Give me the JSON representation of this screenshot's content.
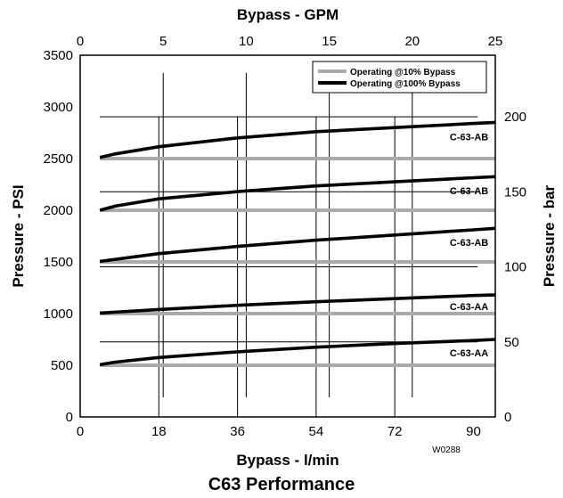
{
  "chart_data": {
    "type": "line",
    "title": "C63 Performance",
    "code": "W0288",
    "x_bottom": {
      "label": "Bypass - l/min",
      "range": [
        0,
        95
      ],
      "ticks": [
        0,
        18,
        36,
        54,
        72,
        90
      ]
    },
    "x_top": {
      "label": "Bypass - GPM",
      "range": [
        0,
        25
      ],
      "ticks": [
        0,
        5,
        10,
        15,
        20,
        25
      ]
    },
    "y_left": {
      "label": "Pressure - PSI",
      "range": [
        0,
        3500
      ],
      "ticks": [
        0,
        500,
        1000,
        1500,
        2000,
        2500,
        3000,
        3500
      ]
    },
    "y_right": {
      "label": "Pressure - bar",
      "range": [
        0,
        241
      ],
      "ticks": [
        0,
        50,
        100,
        150,
        200
      ]
    },
    "grid": "partial",
    "legend": {
      "placement": "top-right",
      "entries": [
        {
          "name": "Operating @10% Bypass",
          "color": "#aaaaaa"
        },
        {
          "name": "Operating @100% Bypass",
          "color": "#000000"
        }
      ]
    },
    "series": [
      {
        "name": "Operating @10% Bypass",
        "label": "C-63-AB",
        "x": [
          4.5,
          95
        ],
        "y": [
          2500,
          2500
        ]
      },
      {
        "name": "Operating @100% Bypass",
        "label": "C-63-AB",
        "x": [
          4.5,
          8,
          18,
          36,
          54,
          72,
          90,
          95
        ],
        "y": [
          2510,
          2545,
          2615,
          2700,
          2760,
          2800,
          2840,
          2850
        ]
      },
      {
        "name": "Operating @10% Bypass",
        "label": "C-63-AB",
        "x": [
          4.5,
          95
        ],
        "y": [
          2000,
          2000
        ]
      },
      {
        "name": "Operating @100% Bypass",
        "label": "C-63-AB",
        "x": [
          4.5,
          8,
          18,
          36,
          54,
          72,
          90,
          95
        ],
        "y": [
          2000,
          2040,
          2110,
          2180,
          2235,
          2275,
          2315,
          2325
        ]
      },
      {
        "name": "Operating @10% Bypass",
        "label": "C-63-AB",
        "x": [
          4.5,
          95
        ],
        "y": [
          1500,
          1500
        ]
      },
      {
        "name": "Operating @100% Bypass",
        "label": "C-63-AB",
        "x": [
          4.5,
          18,
          36,
          54,
          72,
          90,
          95
        ],
        "y": [
          1505,
          1580,
          1650,
          1710,
          1760,
          1810,
          1825
        ]
      },
      {
        "name": "Operating @10% Bypass",
        "label": "C-63-AA",
        "x": [
          4.5,
          95
        ],
        "y": [
          1000,
          1000
        ]
      },
      {
        "name": "Operating @100% Bypass",
        "label": "C-63-AA",
        "x": [
          4.5,
          18,
          36,
          54,
          72,
          90,
          95
        ],
        "y": [
          1005,
          1040,
          1080,
          1115,
          1145,
          1175,
          1180
        ]
      },
      {
        "name": "Operating @10% Bypass",
        "label": "C-63-AA",
        "x": [
          4.5,
          95
        ],
        "y": [
          500,
          500
        ]
      },
      {
        "name": "Operating @100% Bypass",
        "label": "C-63-AA",
        "x": [
          4.5,
          8,
          18,
          36,
          54,
          72,
          90,
          95
        ],
        "y": [
          505,
          530,
          575,
          630,
          675,
          710,
          740,
          750
        ]
      }
    ],
    "curve_labels": [
      {
        "text": "C-63-AB",
        "x": 89,
        "y": 2710
      },
      {
        "text": "C-63-AB",
        "x": 89,
        "y": 2190
      },
      {
        "text": "C-63-AB",
        "x": 89,
        "y": 1690
      },
      {
        "text": "C-63-AA",
        "x": 89,
        "y": 1070
      },
      {
        "text": "C-63-AA",
        "x": 89,
        "y": 620
      }
    ]
  }
}
